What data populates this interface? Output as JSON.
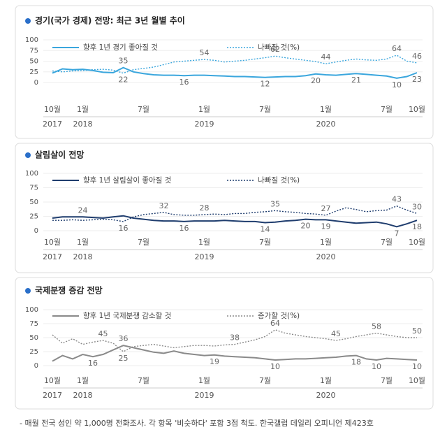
{
  "chart_data": [
    {
      "type": "line",
      "title": "경기(국가 경제) 전망: 최근 3년 월별 추이",
      "categories": [
        "10월",
        null,
        null,
        "1월",
        null,
        null,
        null,
        null,
        null,
        "7월",
        null,
        null,
        null,
        null,
        null,
        "1월",
        null,
        null,
        null,
        null,
        null,
        "7월",
        null,
        null,
        null,
        null,
        null,
        "1월",
        null,
        null,
        null,
        null,
        null,
        "7월",
        null,
        null,
        "10월"
      ],
      "category_years": [
        "2017",
        null,
        null,
        "2018",
        null,
        null,
        null,
        null,
        null,
        null,
        null,
        null,
        null,
        null,
        null,
        "2019",
        null,
        null,
        null,
        null,
        null,
        null,
        null,
        null,
        null,
        null,
        null,
        "2020",
        null,
        null,
        null,
        null,
        null,
        null,
        null,
        null,
        null
      ],
      "ylim": [
        0,
        100
      ],
      "yticks": [
        0,
        25,
        50,
        75,
        100
      ],
      "grid": true,
      "series": [
        {
          "name": "향후 1년 경기 좋아질 것",
          "color": "#3aa6dd",
          "style": "solid",
          "values": [
            22,
            32,
            30,
            31,
            28,
            24,
            23,
            35,
            25,
            21,
            18,
            17,
            17,
            16,
            17,
            17,
            16,
            15,
            14,
            14,
            13,
            12,
            13,
            14,
            14,
            16,
            20,
            18,
            17,
            19,
            21,
            19,
            17,
            15,
            10,
            14,
            23
          ],
          "value_labels": [
            null,
            null,
            null,
            null,
            null,
            null,
            null,
            "35",
            null,
            null,
            null,
            null,
            null,
            "16",
            null,
            null,
            null,
            null,
            null,
            null,
            null,
            "12",
            null,
            null,
            null,
            null,
            "20",
            null,
            null,
            null,
            "21",
            null,
            null,
            null,
            "10",
            null,
            "23"
          ]
        },
        {
          "name": "나빠질 것(%)",
          "color": "#3aa6dd",
          "style": "dotted",
          "values": [
            27,
            25,
            27,
            28,
            30,
            31,
            29,
            22,
            30,
            33,
            36,
            42,
            48,
            50,
            52,
            54,
            52,
            48,
            50,
            52,
            55,
            58,
            62,
            58,
            55,
            52,
            49,
            44,
            48,
            52,
            55,
            53,
            52,
            55,
            64,
            50,
            46
          ],
          "value_labels": [
            null,
            null,
            null,
            null,
            null,
            null,
            null,
            "22",
            null,
            null,
            null,
            null,
            null,
            null,
            null,
            "54",
            null,
            null,
            null,
            null,
            null,
            null,
            "62",
            null,
            null,
            null,
            null,
            "44",
            null,
            null,
            null,
            null,
            null,
            null,
            "64",
            null,
            "46"
          ]
        }
      ]
    },
    {
      "type": "line",
      "title": "살림살이 전망",
      "categories": [
        "10월",
        null,
        null,
        "1월",
        null,
        null,
        null,
        null,
        null,
        "7월",
        null,
        null,
        null,
        null,
        null,
        "1월",
        null,
        null,
        null,
        null,
        null,
        "7월",
        null,
        null,
        null,
        null,
        null,
        "1월",
        null,
        null,
        null,
        null,
        null,
        "7월",
        null,
        null,
        "10월"
      ],
      "category_years": [
        "2017",
        null,
        null,
        "2018",
        null,
        null,
        null,
        null,
        null,
        null,
        null,
        null,
        null,
        null,
        null,
        "2019",
        null,
        null,
        null,
        null,
        null,
        null,
        null,
        null,
        null,
        null,
        null,
        "2020",
        null,
        null,
        null,
        null,
        null,
        null,
        null,
        null,
        null
      ],
      "ylim": [
        0,
        100
      ],
      "yticks": [
        0,
        25,
        50,
        75,
        100
      ],
      "grid": true,
      "series": [
        {
          "name": "향후 1년 살림살이 좋아질 것",
          "color": "#1f3d6e",
          "style": "solid",
          "values": [
            22,
            24,
            24,
            24,
            23,
            22,
            24,
            26,
            22,
            20,
            18,
            17,
            17,
            16,
            17,
            17,
            17,
            18,
            17,
            16,
            16,
            14,
            15,
            17,
            18,
            20,
            19,
            19,
            17,
            15,
            13,
            14,
            15,
            12,
            7,
            12,
            18
          ],
          "value_labels": [
            null,
            null,
            null,
            "24",
            null,
            null,
            null,
            null,
            null,
            null,
            null,
            null,
            null,
            "16",
            null,
            null,
            null,
            null,
            null,
            null,
            null,
            "14",
            null,
            null,
            null,
            "20",
            null,
            "19",
            null,
            null,
            null,
            null,
            null,
            null,
            "7",
            null,
            "18"
          ]
        },
        {
          "name": "나빠질 것(%)",
          "color": "#1f3d6e",
          "style": "dotted",
          "values": [
            18,
            18,
            19,
            18,
            19,
            20,
            19,
            16,
            24,
            28,
            30,
            32,
            28,
            27,
            27,
            28,
            29,
            28,
            30,
            30,
            32,
            33,
            35,
            33,
            32,
            30,
            29,
            27,
            34,
            40,
            37,
            33,
            35,
            36,
            43,
            36,
            30
          ],
          "value_labels": [
            null,
            null,
            null,
            null,
            null,
            null,
            null,
            "16",
            null,
            null,
            null,
            "32",
            null,
            null,
            null,
            "28",
            null,
            null,
            null,
            null,
            null,
            null,
            "35",
            null,
            null,
            null,
            null,
            "27",
            null,
            null,
            null,
            null,
            null,
            null,
            "43",
            null,
            "30"
          ]
        }
      ]
    },
    {
      "type": "line",
      "title": "국제분쟁 증감 전망",
      "categories": [
        "10월",
        null,
        null,
        "1월",
        null,
        null,
        null,
        null,
        null,
        "7월",
        null,
        null,
        null,
        null,
        null,
        "1월",
        null,
        null,
        null,
        null,
        null,
        "7월",
        null,
        null,
        null,
        null,
        null,
        "1월",
        null,
        null,
        null,
        null,
        null,
        "7월",
        null,
        null,
        "10월"
      ],
      "category_years": [
        "2017",
        null,
        null,
        "2018",
        null,
        null,
        null,
        null,
        null,
        null,
        null,
        null,
        null,
        null,
        null,
        "2019",
        null,
        null,
        null,
        null,
        null,
        null,
        null,
        null,
        null,
        null,
        null,
        "2020",
        null,
        null,
        null,
        null,
        null,
        null,
        null,
        null,
        null
      ],
      "ylim": [
        0,
        100
      ],
      "yticks": [
        0,
        25,
        50,
        75,
        100
      ],
      "grid": true,
      "series": [
        {
          "name": "향후 1년 국제분쟁 감소할 것",
          "color": "#8a8a8a",
          "style": "solid",
          "values": [
            8,
            18,
            12,
            20,
            16,
            20,
            28,
            36,
            32,
            28,
            24,
            22,
            26,
            22,
            20,
            18,
            19,
            17,
            16,
            15,
            14,
            12,
            10,
            11,
            12,
            12,
            13,
            14,
            15,
            17,
            18,
            12,
            10,
            13,
            12,
            11,
            10
          ],
          "value_labels": [
            null,
            null,
            null,
            null,
            "16",
            null,
            null,
            "36",
            null,
            null,
            null,
            null,
            null,
            null,
            null,
            null,
            "19",
            null,
            null,
            null,
            null,
            null,
            "10",
            null,
            null,
            null,
            null,
            null,
            null,
            null,
            "18",
            null,
            "10",
            null,
            null,
            null,
            "10"
          ]
        },
        {
          "name": "증가할 것(%)",
          "color": "#8a8a8a",
          "style": "dotted",
          "values": [
            55,
            40,
            48,
            38,
            42,
            45,
            40,
            25,
            34,
            36,
            38,
            35,
            32,
            34,
            36,
            36,
            35,
            37,
            38,
            42,
            46,
            52,
            64,
            58,
            55,
            52,
            50,
            48,
            45,
            48,
            52,
            55,
            58,
            55,
            52,
            50,
            50
          ],
          "value_labels": [
            null,
            null,
            null,
            null,
            null,
            "45",
            null,
            "25",
            null,
            null,
            null,
            null,
            null,
            null,
            null,
            null,
            null,
            null,
            "38",
            null,
            null,
            null,
            "64",
            null,
            null,
            null,
            null,
            null,
            "45",
            null,
            null,
            null,
            "58",
            null,
            null,
            null,
            "50"
          ]
        }
      ]
    }
  ],
  "footnote": "- 매월 전국 성인 약 1,000명 전화조사. 각 항목 '비슷하다' 포함 3점 척도. 한국갤럽 데일리 오피니언 제423호"
}
